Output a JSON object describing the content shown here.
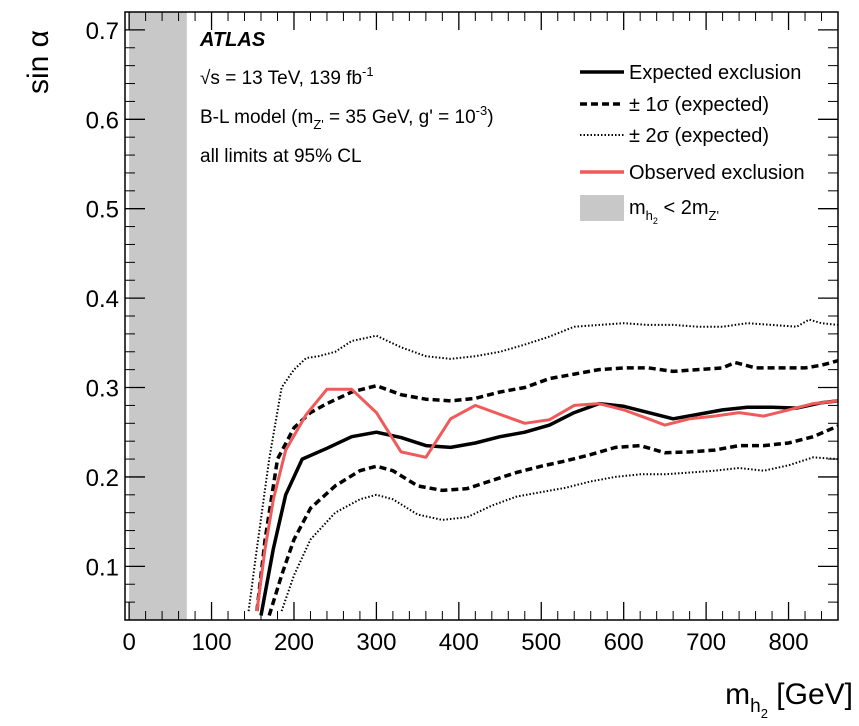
{
  "chart_data": {
    "type": "line",
    "title": "",
    "xlabel_main": "m",
    "xlabel_sub": "h",
    "xlabel_subsub": "2",
    "xlabel_unit": " [GeV]",
    "ylabel": "sin α",
    "xlim": [
      -5,
      860
    ],
    "ylim": [
      0.04,
      0.72
    ],
    "x_ticks": [
      0,
      100,
      200,
      300,
      400,
      500,
      600,
      700,
      800
    ],
    "x_tick_labels": [
      "0",
      "100",
      "200",
      "300",
      "400",
      "500",
      "600",
      "700",
      "800"
    ],
    "y_ticks": [
      0.1,
      0.2,
      0.3,
      0.4,
      0.5,
      0.6,
      0.7
    ],
    "y_tick_labels": [
      "0.1",
      "0.2",
      "0.3",
      "0.4",
      "0.5",
      "0.6",
      "0.7"
    ],
    "grid": false,
    "legend_position": "top-right",
    "excluded_region": {
      "x": [
        0,
        70
      ],
      "color": "#c8c8c8"
    },
    "annotations": {
      "experiment": "ATLAS",
      "energy_sqrt": "√s",
      "energy_rest": " = 13 TeV, 139 fb",
      "energy_sup": "-1",
      "model_a": "B-L model (m",
      "model_sub": "Z'",
      "model_b": " = 35 GeV, g' = 10",
      "model_sup": "-3",
      "model_c": ")",
      "cl": "all limits at 95% CL"
    },
    "legend": {
      "expected": "Expected exclusion",
      "one_sigma": "± 1σ (expected)",
      "two_sigma": "± 2σ (expected)",
      "observed": "Observed exclusion",
      "region_m": "m",
      "region_sub": "h",
      "region_subsub": "2",
      "region_rest": " < 2m",
      "region_sub2": "Z'"
    },
    "series": [
      {
        "key": "expected",
        "style": "solid",
        "color": "#000000",
        "x": [
          160,
          175,
          190,
          210,
          240,
          270,
          300,
          330,
          360,
          390,
          420,
          450,
          480,
          510,
          540,
          570,
          600,
          630,
          660,
          690,
          720,
          750,
          780,
          810,
          840,
          860
        ],
        "values": [
          0.045,
          0.12,
          0.18,
          0.22,
          0.232,
          0.245,
          0.25,
          0.244,
          0.235,
          0.233,
          0.238,
          0.245,
          0.25,
          0.258,
          0.272,
          0.282,
          0.279,
          0.272,
          0.265,
          0.27,
          0.275,
          0.278,
          0.278,
          0.277,
          0.283,
          0.285
        ]
      },
      {
        "key": "plus1",
        "style": "dashed",
        "color": "#000000",
        "x": [
          155,
          165,
          180,
          200,
          220,
          240,
          270,
          300,
          330,
          360,
          390,
          420,
          450,
          480,
          510,
          540,
          570,
          600,
          630,
          660,
          690,
          720,
          735,
          760,
          790,
          820,
          840,
          860
        ],
        "values": [
          0.05,
          0.13,
          0.22,
          0.255,
          0.272,
          0.282,
          0.295,
          0.302,
          0.292,
          0.287,
          0.285,
          0.288,
          0.295,
          0.3,
          0.31,
          0.315,
          0.32,
          0.322,
          0.322,
          0.318,
          0.32,
          0.322,
          0.328,
          0.322,
          0.322,
          0.322,
          0.325,
          0.33
        ]
      },
      {
        "key": "minus1",
        "style": "dashed",
        "color": "#000000",
        "x": [
          170,
          185,
          200,
          220,
          250,
          280,
          300,
          320,
          350,
          380,
          410,
          440,
          470,
          500,
          530,
          560,
          590,
          620,
          650,
          680,
          710,
          740,
          770,
          800,
          830,
          860
        ],
        "values": [
          0.045,
          0.09,
          0.13,
          0.165,
          0.19,
          0.207,
          0.212,
          0.207,
          0.19,
          0.185,
          0.187,
          0.196,
          0.205,
          0.212,
          0.218,
          0.225,
          0.233,
          0.235,
          0.227,
          0.228,
          0.23,
          0.235,
          0.235,
          0.238,
          0.245,
          0.257
        ]
      },
      {
        "key": "plus2",
        "style": "dotted",
        "color": "#000000",
        "x": [
          145,
          155,
          170,
          185,
          200,
          215,
          230,
          250,
          270,
          300,
          330,
          360,
          390,
          420,
          450,
          480,
          510,
          540,
          570,
          600,
          630,
          660,
          690,
          720,
          750,
          780,
          810,
          825,
          840,
          860
        ],
        "values": [
          0.05,
          0.12,
          0.22,
          0.3,
          0.32,
          0.333,
          0.335,
          0.34,
          0.352,
          0.358,
          0.345,
          0.335,
          0.332,
          0.335,
          0.34,
          0.348,
          0.357,
          0.368,
          0.37,
          0.372,
          0.37,
          0.37,
          0.368,
          0.368,
          0.372,
          0.37,
          0.368,
          0.376,
          0.372,
          0.37
        ]
      },
      {
        "key": "minus2",
        "style": "dotted",
        "color": "#000000",
        "x": [
          185,
          200,
          220,
          250,
          280,
          300,
          320,
          350,
          380,
          410,
          440,
          470,
          500,
          530,
          560,
          590,
          620,
          650,
          680,
          710,
          740,
          770,
          800,
          830,
          860
        ],
        "values": [
          0.05,
          0.09,
          0.13,
          0.16,
          0.175,
          0.18,
          0.175,
          0.158,
          0.152,
          0.155,
          0.168,
          0.178,
          0.183,
          0.188,
          0.195,
          0.2,
          0.203,
          0.203,
          0.205,
          0.207,
          0.21,
          0.207,
          0.213,
          0.222,
          0.22
        ]
      },
      {
        "key": "observed",
        "style": "solid",
        "color": "#f05a5a",
        "x": [
          155,
          165,
          175,
          190,
          215,
          240,
          270,
          300,
          330,
          360,
          390,
          420,
          450,
          480,
          510,
          540,
          570,
          600,
          630,
          650,
          680,
          710,
          740,
          770,
          800,
          830,
          860
        ],
        "values": [
          0.05,
          0.12,
          0.175,
          0.23,
          0.27,
          0.298,
          0.298,
          0.272,
          0.228,
          0.222,
          0.265,
          0.28,
          0.27,
          0.26,
          0.264,
          0.28,
          0.282,
          0.275,
          0.265,
          0.258,
          0.265,
          0.268,
          0.272,
          0.268,
          0.275,
          0.282,
          0.285
        ]
      }
    ]
  }
}
